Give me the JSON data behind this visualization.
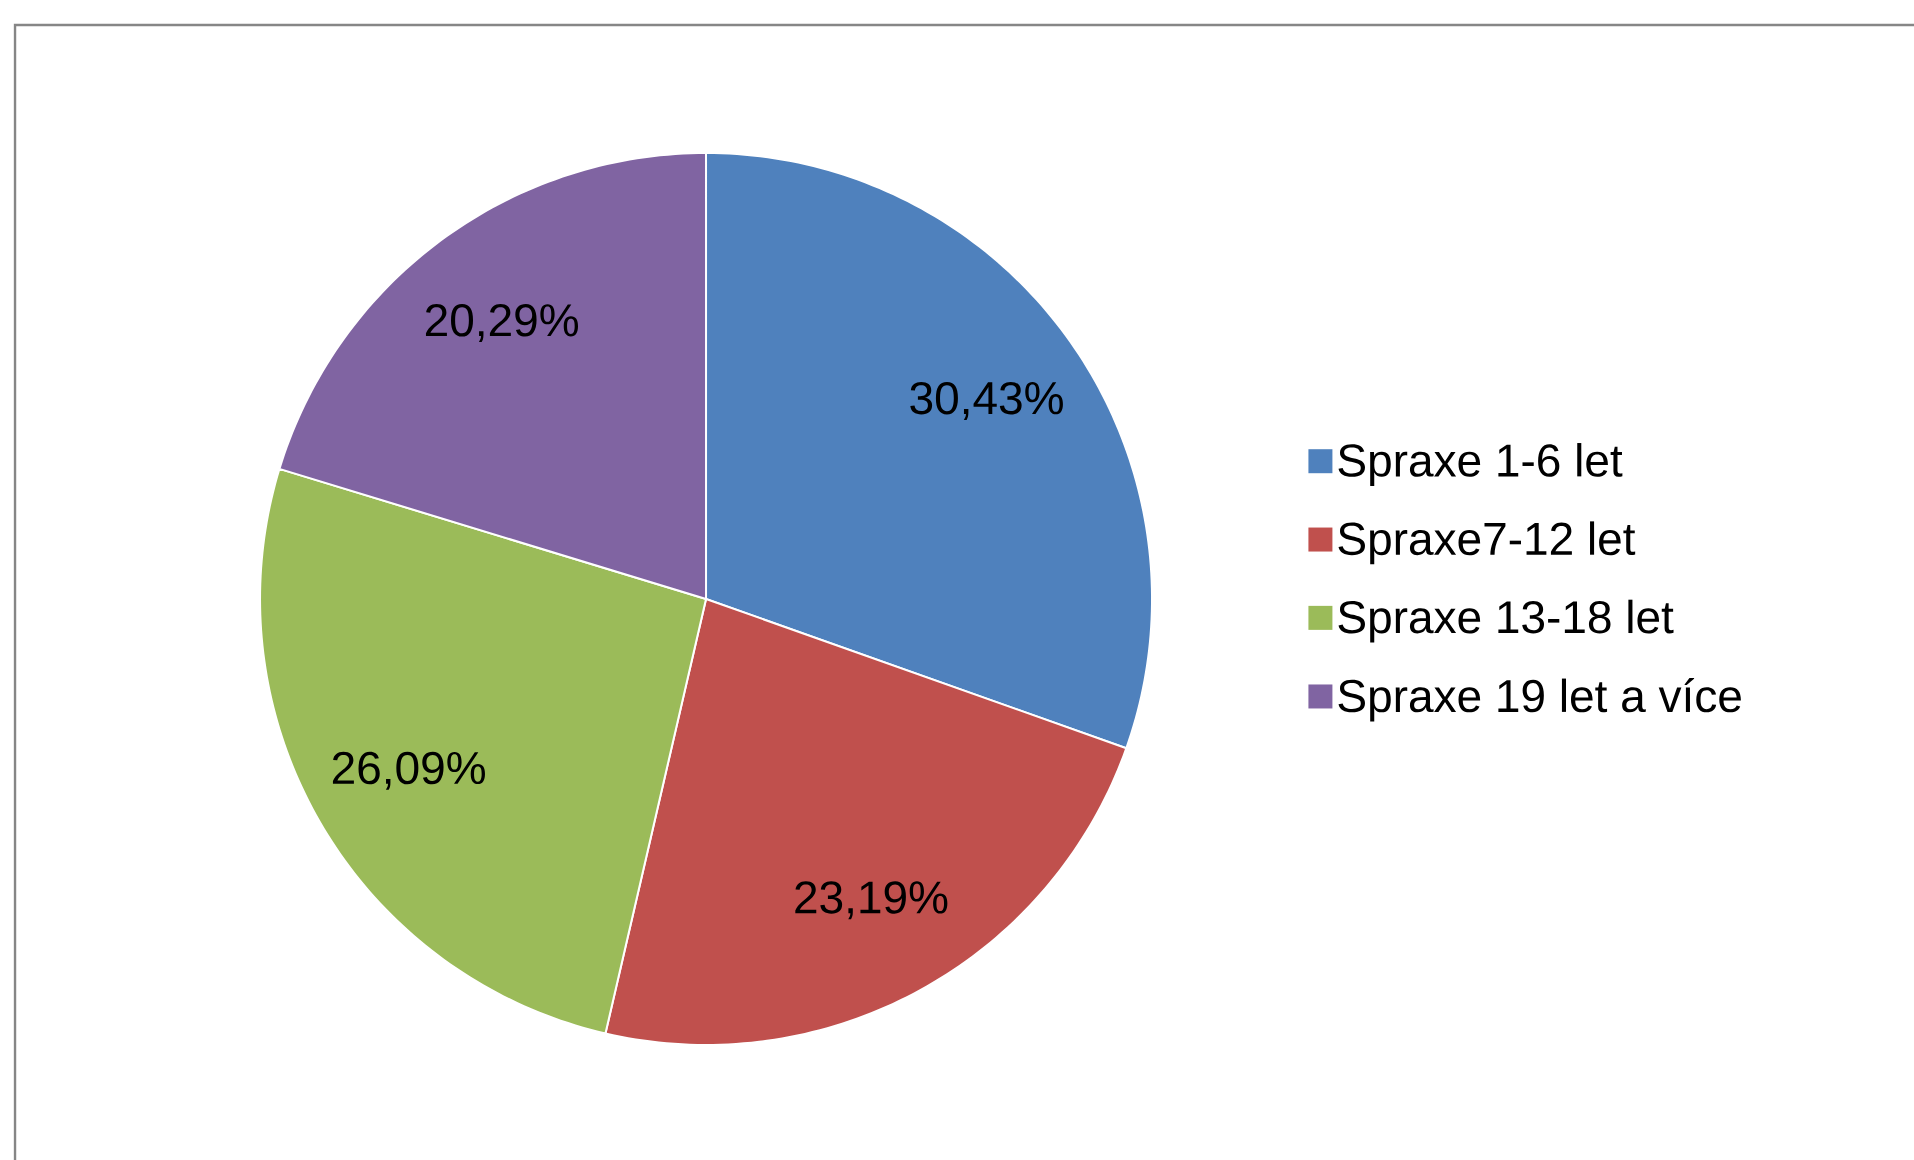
{
  "chart_data": {
    "type": "pie",
    "categories": [
      "Spraxe 1-6 let",
      "Spraxe7-12 let",
      "Spraxe 13-18 let",
      "Spraxe 19 let a více"
    ],
    "values": [
      30.43,
      23.19,
      26.09,
      20.29
    ],
    "colors": [
      "#4f81bd",
      "#c0504d",
      "#9bbb59",
      "#8064a2"
    ],
    "value_labels": [
      "30,43%",
      "23,19%",
      "26,09%",
      "20,29%"
    ],
    "legend": "right"
  }
}
